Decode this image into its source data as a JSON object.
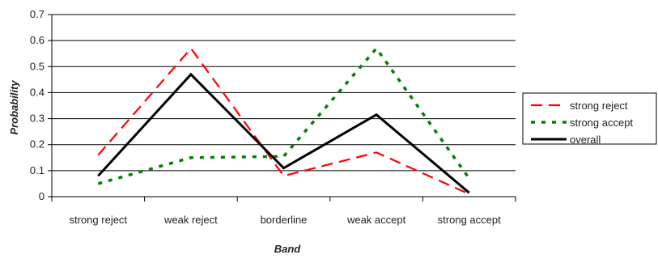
{
  "chart_data": {
    "type": "line",
    "categories": [
      "strong reject",
      "weak reject",
      "borderline",
      "weak accept",
      "strong accept"
    ],
    "series": [
      {
        "name": "strong reject",
        "values": [
          0.16,
          0.57,
          0.08,
          0.17,
          0.01
        ],
        "color": "#ff0000",
        "style": "dashed"
      },
      {
        "name": "strong accept",
        "values": [
          0.05,
          0.15,
          0.155,
          0.57,
          0.07
        ],
        "color": "#008000",
        "style": "dotted"
      },
      {
        "name": "overall",
        "values": [
          0.08,
          0.47,
          0.11,
          0.315,
          0.015
        ],
        "color": "#000000",
        "style": "solid"
      }
    ],
    "xlabel": "Band",
    "ylabel": "Probability",
    "ylim": [
      0,
      0.7
    ],
    "yticks": [
      "0",
      "0.1",
      "0.2",
      "0.3",
      "0.4",
      "0.5",
      "0.6",
      "0.7"
    ],
    "grid": true,
    "legend_position": "right"
  }
}
